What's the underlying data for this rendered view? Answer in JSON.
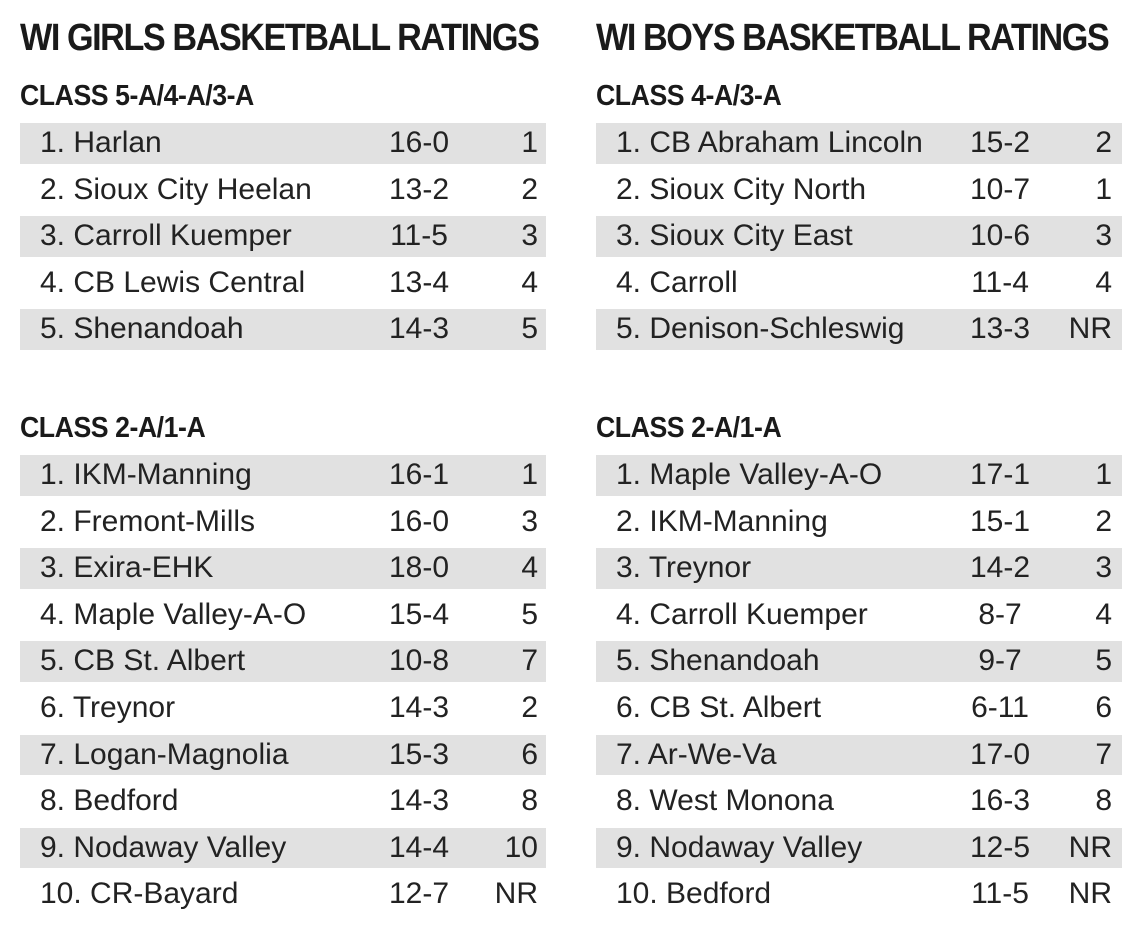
{
  "girls": {
    "title": "WI GIRLS BASKETBALL RATINGS",
    "sections": [
      {
        "class": "CLASS 5-A/4-A/3-A",
        "rows": [
          {
            "team": "1. Harlan",
            "record": "16-0",
            "prev": "1"
          },
          {
            "team": "2. Sioux City Heelan",
            "record": "13-2",
            "prev": "2"
          },
          {
            "team": "3. Carroll Kuemper",
            "record": "11-5",
            "prev": "3"
          },
          {
            "team": "4. CB Lewis Central",
            "record": "13-4",
            "prev": "4"
          },
          {
            "team": "5. Shenandoah",
            "record": "14-3",
            "prev": "5"
          }
        ]
      },
      {
        "class": "CLASS 2-A/1-A",
        "rows": [
          {
            "team": "1. IKM-Manning",
            "record": "16-1",
            "prev": "1"
          },
          {
            "team": "2. Fremont-Mills",
            "record": "16-0",
            "prev": "3"
          },
          {
            "team": "3. Exira-EHK",
            "record": "18-0",
            "prev": "4"
          },
          {
            "team": "4. Maple Valley-A-O",
            "record": "15-4",
            "prev": "5"
          },
          {
            "team": "5. CB St. Albert",
            "record": "10-8",
            "prev": "7"
          },
          {
            "team": "6. Treynor",
            "record": "14-3",
            "prev": "2"
          },
          {
            "team": "7. Logan-Magnolia",
            "record": "15-3",
            "prev": "6"
          },
          {
            "team": "8. Bedford",
            "record": "14-3",
            "prev": "8"
          },
          {
            "team": "9. Nodaway Valley",
            "record": "14-4",
            "prev": "10"
          },
          {
            "team": "10. CR-Bayard",
            "record": "12-7",
            "prev": "NR"
          }
        ]
      }
    ]
  },
  "boys": {
    "title": "WI BOYS BASKETBALL RATINGS",
    "sections": [
      {
        "class": "CLASS 4-A/3-A",
        "rows": [
          {
            "team": "1. CB Abraham Lincoln",
            "record": "15-2",
            "prev": "2"
          },
          {
            "team": "2. Sioux City North",
            "record": "10-7",
            "prev": "1"
          },
          {
            "team": "3. Sioux City East",
            "record": "10-6",
            "prev": "3"
          },
          {
            "team": "4. Carroll",
            "record": "11-4",
            "prev": "4"
          },
          {
            "team": "5. Denison-Schleswig",
            "record": "13-3",
            "prev": "NR"
          }
        ]
      },
      {
        "class": "CLASS 2-A/1-A",
        "rows": [
          {
            "team": "1. Maple Valley-A-O",
            "record": "17-1",
            "prev": "1"
          },
          {
            "team": "2. IKM-Manning",
            "record": "15-1",
            "prev": "2"
          },
          {
            "team": "3. Treynor",
            "record": "14-2",
            "prev": "3"
          },
          {
            "team": "4. Carroll Kuemper",
            "record": "8-7",
            "prev": "4"
          },
          {
            "team": "5. Shenandoah",
            "record": "9-7",
            "prev": "5"
          },
          {
            "team": "6. CB St. Albert",
            "record": "6-11",
            "prev": "6"
          },
          {
            "team": "7. Ar-We-Va",
            "record": "17-0",
            "prev": "7"
          },
          {
            "team": "8. West Monona",
            "record": "16-3",
            "prev": "8"
          },
          {
            "team": "9. Nodaway Valley",
            "record": "12-5",
            "prev": "NR"
          },
          {
            "team": "10. Bedford",
            "record": "11-5",
            "prev": "NR"
          }
        ]
      }
    ]
  }
}
